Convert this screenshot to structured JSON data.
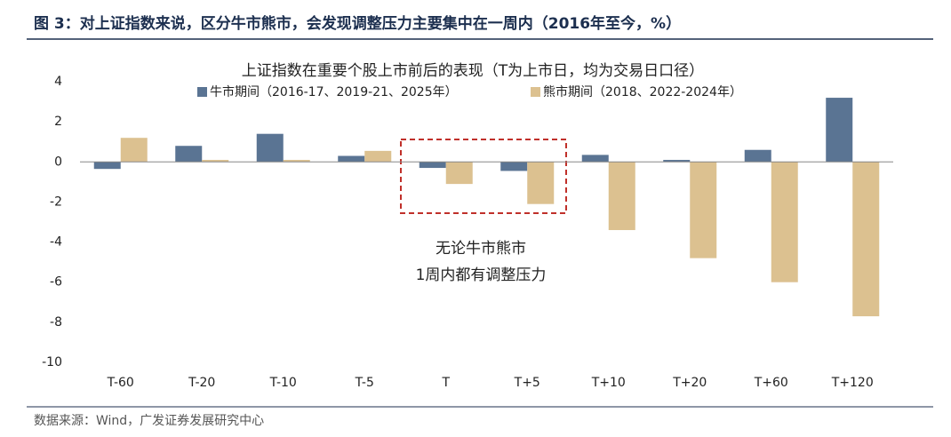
{
  "figure_title": "图 3：对上证指数来说，区分牛市熊市，会发现调整压力主要集中在一周内（2016年至今，%）",
  "source": "数据来源：Wind，广发证券发展研究中心",
  "chart_data": {
    "type": "bar",
    "title": "上证指数在重要个股上市前后的表现（T为上市日，均为交易日口径）",
    "categories": [
      "T-60",
      "T-20",
      "T-10",
      "T-5",
      "T",
      "T+5",
      "T+10",
      "T+20",
      "T+60",
      "T+120"
    ],
    "series": [
      {
        "name": "牛市期间（2016-17、2019-21、2025年）",
        "color": "#5a7493",
        "values": [
          -0.35,
          0.8,
          1.4,
          0.3,
          -0.3,
          -0.45,
          0.35,
          0.1,
          0.6,
          3.2
        ]
      },
      {
        "name": "熊市期间（2018、2022-2024年）",
        "color": "#dcc190",
        "values": [
          1.2,
          0.1,
          0.1,
          0.55,
          -1.1,
          -2.1,
          -3.4,
          -4.8,
          -6.0,
          -7.7
        ]
      }
    ],
    "ylim": [
      -10,
      4
    ],
    "yticks": [
      -10,
      -8,
      -6,
      -4,
      -2,
      0,
      2,
      4
    ],
    "annotations": [
      "无论牛市熊市",
      "1周内都有调整压力"
    ]
  }
}
